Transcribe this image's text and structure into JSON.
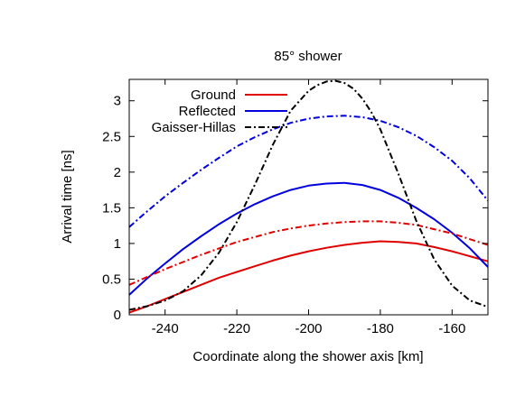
{
  "chart_data": {
    "type": "line",
    "title": "85° shower",
    "xlabel": "Coordinate along the shower axis [km]",
    "ylabel": "Arrival time [ns]",
    "xlim": [
      -250,
      -150
    ],
    "ylim": [
      0,
      3.3
    ],
    "xticks": [
      -240,
      -220,
      -200,
      -180,
      -160
    ],
    "xtick_labels": [
      "-240",
      "-220",
      "-200",
      "-180",
      "-160"
    ],
    "yticks": [
      0,
      0.5,
      1,
      1.5,
      2,
      2.5,
      3
    ],
    "ytick_labels": [
      "0",
      "0.5",
      "1",
      "1.5",
      "2",
      "2.5",
      "3"
    ],
    "grid": false,
    "legend_position": "top-left",
    "legend": [
      {
        "label": "Ground",
        "color": "#e00000",
        "dash": "solid"
      },
      {
        "label": "Reflected",
        "color": "#0000e0",
        "dash": "solid"
      },
      {
        "label": "Gaisser-Hillas",
        "color": "#000000",
        "dash": "dash-dot"
      }
    ],
    "series": [
      {
        "color": "#e00000",
        "dash": "solid",
        "x": [
          -250,
          -245,
          -240,
          -235,
          -230,
          -225,
          -220,
          -215,
          -210,
          -205,
          -200,
          -195,
          -190,
          -185,
          -180,
          -175,
          -170,
          -165,
          -160,
          -155,
          -150
        ],
        "y": [
          0.03,
          0.12,
          0.22,
          0.32,
          0.42,
          0.52,
          0.6,
          0.68,
          0.76,
          0.83,
          0.89,
          0.94,
          0.98,
          1.01,
          1.03,
          1.02,
          1.0,
          0.95,
          0.89,
          0.82,
          0.75
        ]
      },
      {
        "color": "#0000e0",
        "dash": "solid",
        "x": [
          -250,
          -245,
          -240,
          -235,
          -230,
          -225,
          -220,
          -215,
          -210,
          -205,
          -200,
          -195,
          -190,
          -185,
          -180,
          -175,
          -170,
          -165,
          -160,
          -155,
          -150
        ],
        "y": [
          0.28,
          0.51,
          0.72,
          0.92,
          1.1,
          1.27,
          1.42,
          1.55,
          1.66,
          1.75,
          1.81,
          1.84,
          1.85,
          1.82,
          1.75,
          1.64,
          1.5,
          1.34,
          1.15,
          0.93,
          0.67
        ]
      },
      {
        "color": "#e00000",
        "dash": "dash-dot",
        "x": [
          -250,
          -245,
          -240,
          -235,
          -230,
          -225,
          -220,
          -215,
          -210,
          -205,
          -200,
          -195,
          -190,
          -185,
          -180,
          -175,
          -170,
          -165,
          -160,
          -155,
          -150
        ],
        "y": [
          0.42,
          0.53,
          0.64,
          0.74,
          0.84,
          0.93,
          1.02,
          1.09,
          1.16,
          1.21,
          1.25,
          1.28,
          1.3,
          1.31,
          1.31,
          1.29,
          1.26,
          1.2,
          1.14,
          1.06,
          0.98
        ]
      },
      {
        "color": "#0000e0",
        "dash": "dash-dot",
        "x": [
          -250,
          -245,
          -240,
          -235,
          -230,
          -225,
          -220,
          -215,
          -210,
          -205,
          -200,
          -195,
          -190,
          -185,
          -180,
          -175,
          -170,
          -165,
          -160,
          -155,
          -150
        ],
        "y": [
          1.23,
          1.45,
          1.66,
          1.85,
          2.03,
          2.2,
          2.36,
          2.49,
          2.6,
          2.69,
          2.75,
          2.78,
          2.79,
          2.77,
          2.72,
          2.63,
          2.51,
          2.35,
          2.16,
          1.91,
          1.6
        ]
      },
      {
        "color": "#000000",
        "dash": "dash-dot",
        "x": [
          -250,
          -245,
          -240,
          -235,
          -230,
          -225,
          -220,
          -215,
          -210,
          -205,
          -200,
          -197.5,
          -195,
          -192.5,
          -190,
          -187.5,
          -185,
          -182.5,
          -180,
          -175,
          -170,
          -165,
          -160,
          -155,
          -150
        ],
        "y": [
          0.07,
          0.12,
          0.2,
          0.33,
          0.55,
          0.87,
          1.3,
          1.82,
          2.38,
          2.86,
          3.14,
          3.22,
          3.27,
          3.28,
          3.25,
          3.17,
          3.03,
          2.84,
          2.6,
          1.98,
          1.32,
          0.78,
          0.41,
          0.2,
          0.11
        ]
      }
    ]
  }
}
